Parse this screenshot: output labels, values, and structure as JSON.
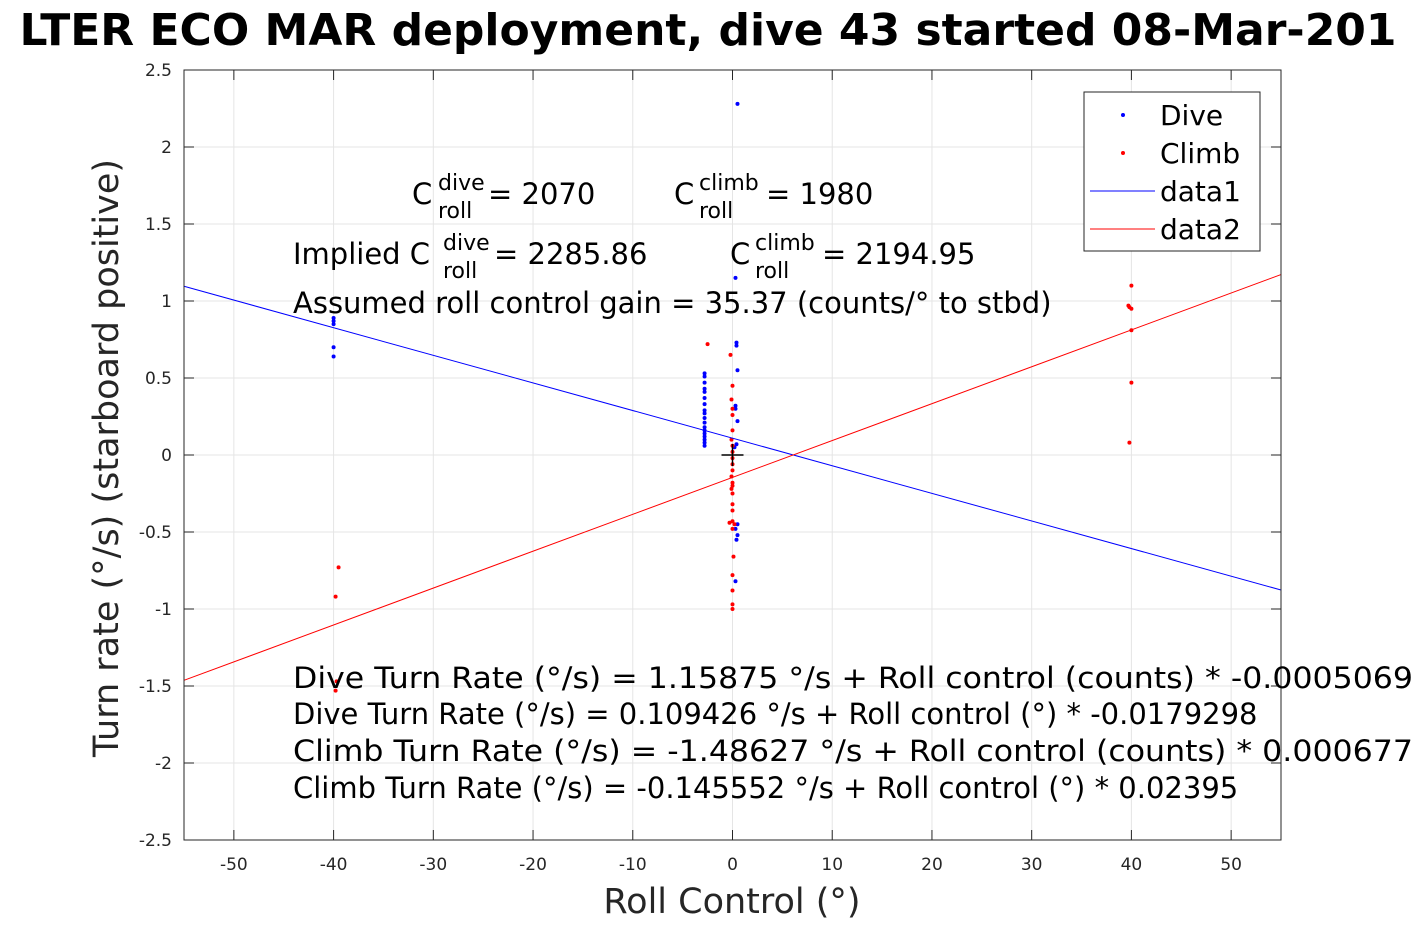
{
  "chart_data": {
    "type": "scatter",
    "title": "LTER ECO MAR deployment, dive 43 started 08-Mar-201",
    "xlabel": "Roll Control (°)",
    "ylabel": "Turn rate (°/s) (starboard positive)",
    "xlim": [
      -55,
      55
    ],
    "ylim": [
      -2.5,
      2.5
    ],
    "x_ticks": [
      -50,
      -40,
      -30,
      -20,
      -10,
      0,
      10,
      20,
      30,
      40,
      50
    ],
    "y_ticks": [
      2.5,
      2,
      1.5,
      1,
      0.5,
      0,
      -0.5,
      -1,
      -1.5,
      -2,
      -2.5
    ],
    "x_tick_labels": [
      "-50",
      "-40",
      "-30",
      "-20",
      "-10",
      "0",
      "10",
      "20",
      "30",
      "40",
      "50"
    ],
    "y_tick_labels": [
      "2.5",
      "2",
      "1.5",
      "1",
      "0.5",
      "0",
      "-0.5",
      "-1",
      "-1.5",
      "-2",
      "-2.5"
    ],
    "grid": true,
    "legend_position": "top-right",
    "legend": [
      "Dive",
      "Climb",
      "data1",
      "data2"
    ],
    "colors": {
      "dive": "#0000ff",
      "climb": "#ff0000",
      "axis": "#262626",
      "grid": "#e5e5e5"
    },
    "series": [
      {
        "name": "Dive",
        "kind": "points",
        "color": "#0000ff",
        "points": [
          [
            -40,
            0.89
          ],
          [
            -40,
            0.87
          ],
          [
            -40,
            0.85
          ],
          [
            -40,
            0.7
          ],
          [
            -40,
            0.64
          ],
          [
            -2.8,
            0.53
          ],
          [
            -2.8,
            0.51
          ],
          [
            -2.8,
            0.47
          ],
          [
            -2.8,
            0.43
          ],
          [
            -2.8,
            0.41
          ],
          [
            -2.8,
            0.37
          ],
          [
            -2.8,
            0.33
          ],
          [
            -2.8,
            0.29
          ],
          [
            -2.8,
            0.27
          ],
          [
            -2.8,
            0.24
          ],
          [
            -2.8,
            0.21
          ],
          [
            -2.8,
            0.18
          ],
          [
            -2.8,
            0.16
          ],
          [
            -2.8,
            0.14
          ],
          [
            -2.8,
            0.12
          ],
          [
            -2.8,
            0.1
          ],
          [
            -2.8,
            0.08
          ],
          [
            -2.8,
            0.06
          ],
          [
            0.5,
            2.28
          ],
          [
            0.3,
            1.15
          ],
          [
            0.4,
            0.73
          ],
          [
            0.4,
            0.71
          ],
          [
            0.5,
            0.55
          ],
          [
            0.3,
            0.32
          ],
          [
            0.3,
            0.3
          ],
          [
            0.5,
            0.22
          ],
          [
            0.4,
            0.07
          ],
          [
            0.2,
            0.05
          ],
          [
            0.5,
            -0.45
          ],
          [
            0.3,
            -0.48
          ],
          [
            0.5,
            -0.52
          ],
          [
            0.4,
            -0.55
          ],
          [
            0.3,
            -0.82
          ]
        ]
      },
      {
        "name": "Climb",
        "kind": "points",
        "color": "#ff0000",
        "points": [
          [
            -39.5,
            -0.73
          ],
          [
            -39.8,
            -0.92
          ],
          [
            -39.7,
            -1.47
          ],
          [
            -39.8,
            -1.53
          ],
          [
            -2.5,
            0.72
          ],
          [
            -0.2,
            0.65
          ],
          [
            0,
            0.45
          ],
          [
            -0.1,
            0.36
          ],
          [
            0,
            0.3
          ],
          [
            0,
            0.26
          ],
          [
            0,
            0.16
          ],
          [
            -0.1,
            0.1
          ],
          [
            0,
            0.06
          ],
          [
            0,
            0.02
          ],
          [
            0,
            -0.02
          ],
          [
            0,
            -0.06
          ],
          [
            0,
            -0.1
          ],
          [
            -0.1,
            -0.14
          ],
          [
            0,
            -0.18
          ],
          [
            0,
            -0.2
          ],
          [
            -0.1,
            -0.22
          ],
          [
            0,
            -0.25
          ],
          [
            0,
            -0.32
          ],
          [
            0,
            -0.36
          ],
          [
            0,
            -0.43
          ],
          [
            -0.3,
            -0.44
          ],
          [
            0,
            -0.48
          ],
          [
            0.1,
            -0.66
          ],
          [
            0,
            -0.78
          ],
          [
            0,
            -0.88
          ],
          [
            0,
            -0.97
          ],
          [
            0,
            -1.0
          ],
          [
            0.2,
            -0.45
          ],
          [
            40,
            1.1
          ],
          [
            39.7,
            0.97
          ],
          [
            40,
            0.95
          ],
          [
            39.8,
            0.96
          ],
          [
            40,
            0.81
          ],
          [
            40,
            0.47
          ],
          [
            39.8,
            0.08
          ]
        ]
      },
      {
        "name": "data1",
        "kind": "line",
        "color": "#0000ff",
        "points": [
          [
            -55,
            1.0955
          ],
          [
            55,
            -0.8766
          ]
        ]
      },
      {
        "name": "data2",
        "kind": "line",
        "color": "#ff0000",
        "points": [
          [
            -55,
            -1.463
          ],
          [
            55,
            1.1717
          ]
        ]
      }
    ],
    "origin_marker": [
      0,
      0
    ]
  },
  "annotations": {
    "c_dive_base": "C",
    "c_dive_sup": "dive",
    "c_dive_sub": "roll",
    "c_dive_value": " = 2070",
    "c_climb_base": "C",
    "c_climb_sup": "climb",
    "c_climb_sub": "roll",
    "c_climb_value": " = 1980",
    "implied_prefix": "Implied C",
    "implied_dive_sup": "dive",
    "implied_dive_sub": "roll",
    "implied_dive_value": " = 2285.86",
    "implied_climb_base": "C",
    "implied_climb_sup": "climb",
    "implied_climb_sub": "roll",
    "implied_climb_value": " = 2194.95",
    "gain_line": "Assumed roll control gain = 35.37 (counts/° to stbd)",
    "fit_lines": [
      "Dive Turn Rate (°/s) = 1.15875 °/s + Roll control (counts) * -0.0005069",
      "Dive Turn Rate (°/s) = 0.109426 °/s + Roll control (°) * -0.0179298",
      "Climb Turn Rate (°/s) = -1.48627 °/s + Roll control (counts) * 0.000677",
      "Climb Turn Rate (°/s) = -0.145552 °/s + Roll control (°) * 0.02395"
    ]
  }
}
